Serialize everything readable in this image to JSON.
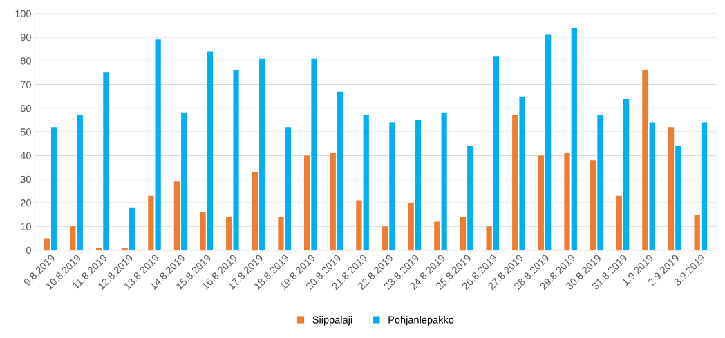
{
  "chart_data": {
    "type": "bar",
    "categories": [
      "9.8.2019",
      "10.8.2019",
      "11.8.2019",
      "12.8.2019",
      "13.8.2019",
      "14.8.2019",
      "15.8.2019",
      "16.8.2019",
      "17.8.2019",
      "18.8.2019",
      "19.8.2019",
      "20.8.2019",
      "21.8.2019",
      "22.8.2019",
      "23.8.2019",
      "24.8.2019",
      "25.8.2019",
      "26.8.2019",
      "27.8.2019",
      "28.8.2019",
      "29.8.2019",
      "30.8.2019",
      "31.8.2019",
      "1.9.2019",
      "2.9.2019",
      "3.9.2019"
    ],
    "series": [
      {
        "name": "Siippalaji",
        "color": "#ed7d31",
        "values": [
          5,
          10,
          1,
          1,
          23,
          29,
          16,
          14,
          33,
          14,
          40,
          41,
          21,
          10,
          20,
          12,
          14,
          10,
          57,
          40,
          41,
          38,
          23,
          76,
          52,
          15
        ]
      },
      {
        "name": "Pohjanlepakko",
        "color": "#00b0f0",
        "values": [
          52,
          57,
          75,
          18,
          89,
          58,
          84,
          76,
          81,
          52,
          81,
          67,
          57,
          54,
          55,
          58,
          44,
          82,
          65,
          91,
          94,
          57,
          64,
          54,
          44,
          54
        ]
      }
    ],
    "ylim": [
      0,
      100
    ],
    "yticks": [
      0,
      10,
      20,
      30,
      40,
      50,
      60,
      70,
      80,
      90,
      100
    ],
    "grid": "y",
    "legend": "bottom"
  }
}
